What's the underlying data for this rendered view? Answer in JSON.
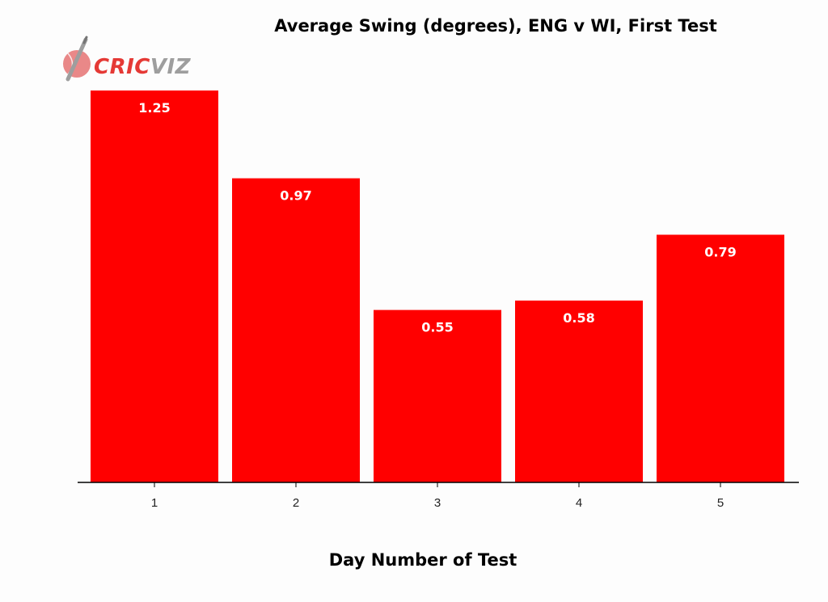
{
  "logo": {
    "brand_left": "CRIC",
    "brand_right": "VIZ",
    "color_left": "#e53935",
    "color_right": "#9e9e9e"
  },
  "chart_data": {
    "type": "bar",
    "title": "Average Swing (degrees), ENG v WI, First Test",
    "xlabel": "Day Number of Test",
    "ylabel": "",
    "categories": [
      "1",
      "2",
      "3",
      "4",
      "5"
    ],
    "values": [
      1.25,
      0.97,
      0.55,
      0.58,
      0.79
    ],
    "value_labels": [
      "1.25",
      "0.97",
      "0.55",
      "0.58",
      "0.79"
    ],
    "ylim": [
      0,
      1.25
    ],
    "bar_color": "#ff0000",
    "grid": false,
    "legend": "none"
  }
}
